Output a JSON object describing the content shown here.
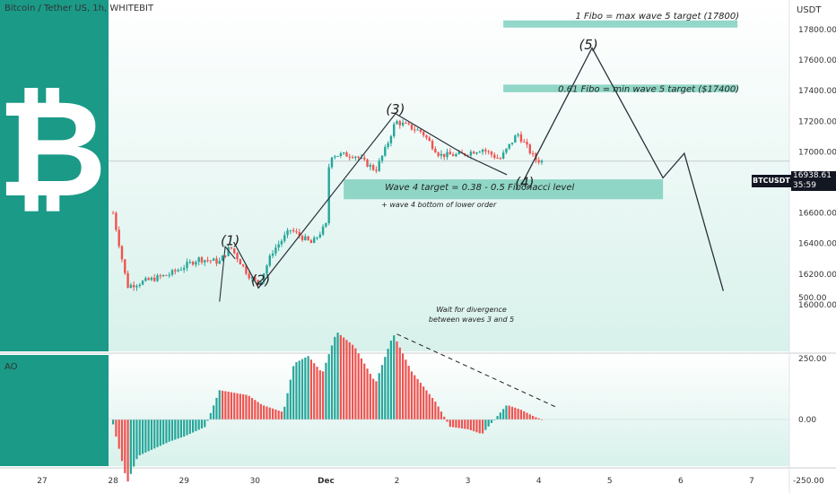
{
  "header": {
    "symbol": "Bitcoin / Tether US, 1h, WHITEBIT",
    "currency": "USDT",
    "indicator": "AO"
  },
  "price_tag": {
    "ticker": "BTCUSDT",
    "price": "16938.61",
    "countdown": "35:59"
  },
  "logo": {
    "glyph": "₿"
  },
  "colors": {
    "teal": "#1a9a87",
    "bull": "#26a69a",
    "bear": "#ef5350",
    "zone": "#7fd0bd",
    "line": "#2a2e39"
  },
  "chart_data": [
    {
      "type": "candlestick",
      "y_axis_ticks": [
        "17800.00",
        "17600.00",
        "17400.00",
        "17200.00",
        "17000.00",
        "16800.00",
        "16600.00",
        "16400.00",
        "16200.00",
        "16000.00"
      ],
      "ylim": [
        15930,
        18020
      ],
      "x_ticks": [
        "27",
        "28",
        "29",
        "30",
        "Dec",
        "2",
        "3",
        "4",
        "5",
        "6",
        "7"
      ],
      "last_price": 16938.61,
      "wave_labels": [
        {
          "text": "(1)",
          "day": 29.65,
          "price": 16390
        },
        {
          "text": "(2)",
          "day": 30.08,
          "price": 16130
        },
        {
          "text": "(3)",
          "day": 31.98,
          "price": 17250
        },
        {
          "text": "(4)",
          "day": 33.8,
          "price": 16770
        },
        {
          "text": "(5)",
          "day": 34.7,
          "price": 17670
        }
      ],
      "projection_path": [
        {
          "day": 33.75,
          "price": 16780
        },
        {
          "day": 34.75,
          "price": 17680
        },
        {
          "day": 35.75,
          "price": 16830
        },
        {
          "day": 36.05,
          "price": 16990
        },
        {
          "day": 36.6,
          "price": 16090
        }
      ],
      "wave_path": [
        {
          "day": 29.7,
          "price": 16410
        },
        {
          "day": 30.05,
          "price": 16110
        },
        {
          "day": 31.98,
          "price": 17250
        },
        {
          "day": 33.0,
          "price": 16970
        },
        {
          "day": 33.55,
          "price": 16850
        }
      ],
      "zones": [
        {
          "label": "1 Fibo = max wave 5 target (17800)",
          "day_from": 33.5,
          "day_to": 36.8,
          "price_from": 17820,
          "price_to": 17860
        },
        {
          "label": "0.61 Fibo = min wave 5 target ($17400)",
          "day_from": 33.5,
          "day_to": 36.8,
          "price_from": 17390,
          "price_to": 17440
        },
        {
          "label": "Wave 4 target = 0.38 - 0.5 Fibonacci level",
          "day_from": 31.25,
          "day_to": 35.75,
          "price_from": 16690,
          "price_to": 16820
        }
      ],
      "annotations": [
        {
          "text": "+ wave 4 bottom of lower order",
          "day": 31.78,
          "price": 16640
        }
      ]
    },
    {
      "type": "bar",
      "name": "AO",
      "y_axis_ticks": [
        "500.00",
        "250.00",
        "0.00",
        "-250.00"
      ],
      "ylim": [
        -340,
        510
      ],
      "divergence_note": [
        "Wait for divergence",
        "between waves 3 and 5"
      ]
    }
  ]
}
